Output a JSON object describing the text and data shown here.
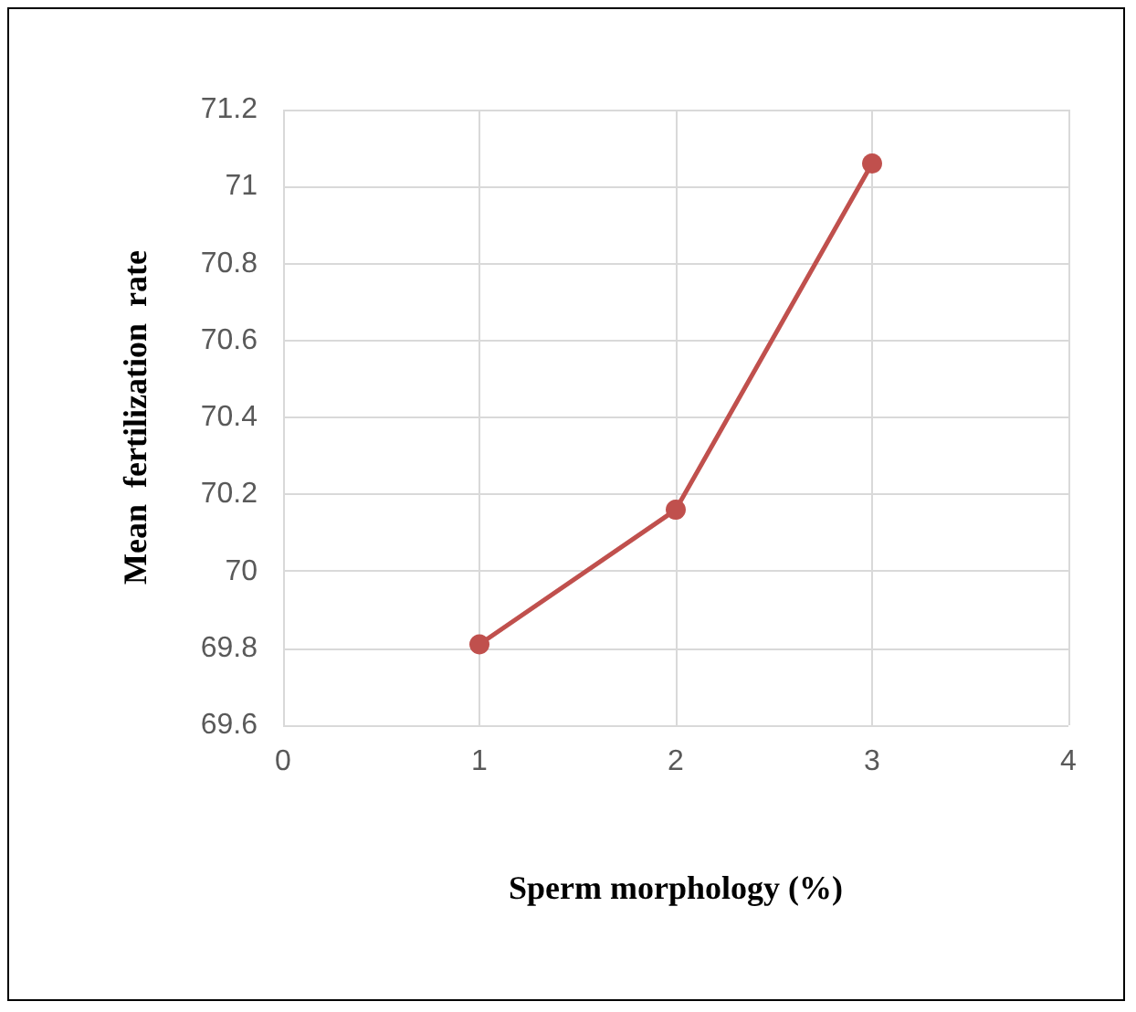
{
  "chart_data": {
    "type": "line",
    "xlabel": "Sperm morphology (%)",
    "ylabel": "Mean  fertilization  rate",
    "x": [
      1,
      2,
      3
    ],
    "series": [
      {
        "color": "#c0504d",
        "values": [
          69.81,
          70.16,
          71.06
        ]
      }
    ],
    "xlim": [
      0,
      4
    ],
    "xticks": [
      0,
      1,
      2,
      3,
      4
    ],
    "ylim": [
      69.6,
      71.2
    ],
    "yticks": [
      69.6,
      69.8,
      70,
      70.2,
      70.4,
      70.6,
      70.8,
      71,
      71.2
    ],
    "grid": true,
    "marker": "circle",
    "line_style": "solid"
  }
}
